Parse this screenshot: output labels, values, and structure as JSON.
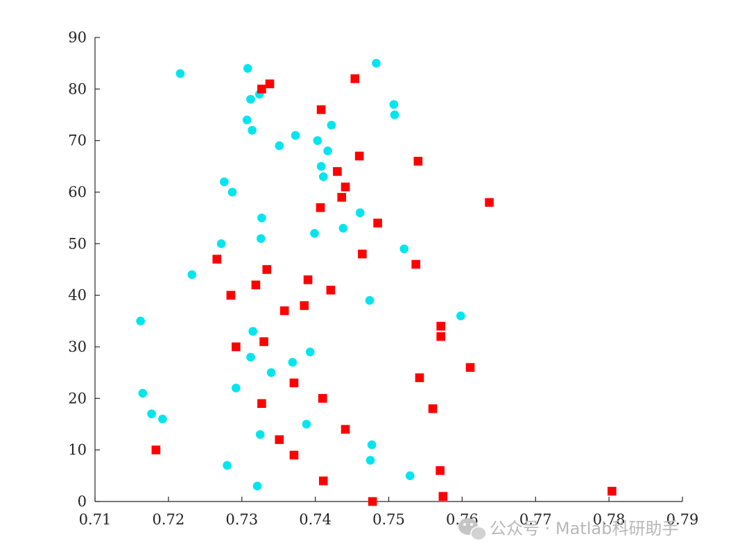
{
  "chart_data": {
    "type": "scatter",
    "title": "",
    "xlabel": "",
    "ylabel": "",
    "xlim": [
      0.71,
      0.79
    ],
    "ylim": [
      0,
      90
    ],
    "x_ticks": [
      0.71,
      0.72,
      0.73,
      0.74,
      0.75,
      0.76,
      0.77,
      0.78,
      0.79
    ],
    "y_ticks": [
      0,
      10,
      20,
      30,
      40,
      50,
      60,
      70,
      80,
      90
    ],
    "x_tick_labels": [
      "0.71",
      "0.72",
      "0.73",
      "0.74",
      "0.75",
      "0.76",
      "0.77",
      "0.78",
      "0.79"
    ],
    "y_tick_labels": [
      "0",
      "10",
      "20",
      "30",
      "40",
      "50",
      "60",
      "70",
      "80",
      "90"
    ],
    "grid": false,
    "legend": "none",
    "series": [
      {
        "marker": "circle",
        "color": "#00e5ee",
        "points": [
          [
            0.7162,
            35
          ],
          [
            0.7165,
            21
          ],
          [
            0.7177,
            17
          ],
          [
            0.7192,
            16
          ],
          [
            0.7216,
            83
          ],
          [
            0.7232,
            44
          ],
          [
            0.7272,
            50
          ],
          [
            0.7276,
            62
          ],
          [
            0.728,
            7
          ],
          [
            0.7287,
            60
          ],
          [
            0.7292,
            22
          ],
          [
            0.7307,
            74
          ],
          [
            0.7308,
            84
          ],
          [
            0.7312,
            78
          ],
          [
            0.7312,
            28
          ],
          [
            0.7314,
            72
          ],
          [
            0.7315,
            33
          ],
          [
            0.7321,
            3
          ],
          [
            0.7324,
            79
          ],
          [
            0.7325,
            13
          ],
          [
            0.7326,
            51
          ],
          [
            0.7327,
            55
          ],
          [
            0.734,
            25
          ],
          [
            0.7351,
            69
          ],
          [
            0.7369,
            27
          ],
          [
            0.7373,
            71
          ],
          [
            0.7388,
            15
          ],
          [
            0.7393,
            29
          ],
          [
            0.7399,
            52
          ],
          [
            0.7403,
            70
          ],
          [
            0.7408,
            65
          ],
          [
            0.7411,
            63
          ],
          [
            0.7417,
            68
          ],
          [
            0.7422,
            73
          ],
          [
            0.7438,
            53
          ],
          [
            0.7461,
            56
          ],
          [
            0.7474,
            39
          ],
          [
            0.7475,
            8
          ],
          [
            0.7477,
            11
          ],
          [
            0.7483,
            85
          ],
          [
            0.7507,
            77
          ],
          [
            0.7508,
            75
          ],
          [
            0.7521,
            49
          ],
          [
            0.7529,
            5
          ],
          [
            0.7598,
            36
          ]
        ]
      },
      {
        "marker": "square",
        "color": "#ff0000",
        "points": [
          [
            0.7183,
            10
          ],
          [
            0.7266,
            47
          ],
          [
            0.7285,
            40
          ],
          [
            0.7292,
            30
          ],
          [
            0.7319,
            42
          ],
          [
            0.7327,
            80
          ],
          [
            0.7327,
            19
          ],
          [
            0.733,
            31
          ],
          [
            0.7334,
            45
          ],
          [
            0.7338,
            81
          ],
          [
            0.7351,
            12
          ],
          [
            0.7358,
            37
          ],
          [
            0.7371,
            23
          ],
          [
            0.7371,
            9
          ],
          [
            0.7385,
            38
          ],
          [
            0.739,
            43
          ],
          [
            0.7407,
            57
          ],
          [
            0.7408,
            76
          ],
          [
            0.741,
            20
          ],
          [
            0.7411,
            4
          ],
          [
            0.7421,
            41
          ],
          [
            0.743,
            64
          ],
          [
            0.7436,
            59
          ],
          [
            0.7441,
            61
          ],
          [
            0.7441,
            14
          ],
          [
            0.7454,
            82
          ],
          [
            0.746,
            67
          ],
          [
            0.7464,
            48
          ],
          [
            0.7478,
            0
          ],
          [
            0.7485,
            54
          ],
          [
            0.7537,
            46
          ],
          [
            0.754,
            66
          ],
          [
            0.7542,
            24
          ],
          [
            0.756,
            18
          ],
          [
            0.757,
            6
          ],
          [
            0.7571,
            32
          ],
          [
            0.7571,
            34
          ],
          [
            0.7574,
            1
          ],
          [
            0.7611,
            26
          ],
          [
            0.7637,
            58
          ],
          [
            0.7804,
            2
          ]
        ]
      }
    ]
  },
  "watermark": {
    "text": "公众号 · Matlab科研助手",
    "icon": "wechat-icon"
  }
}
